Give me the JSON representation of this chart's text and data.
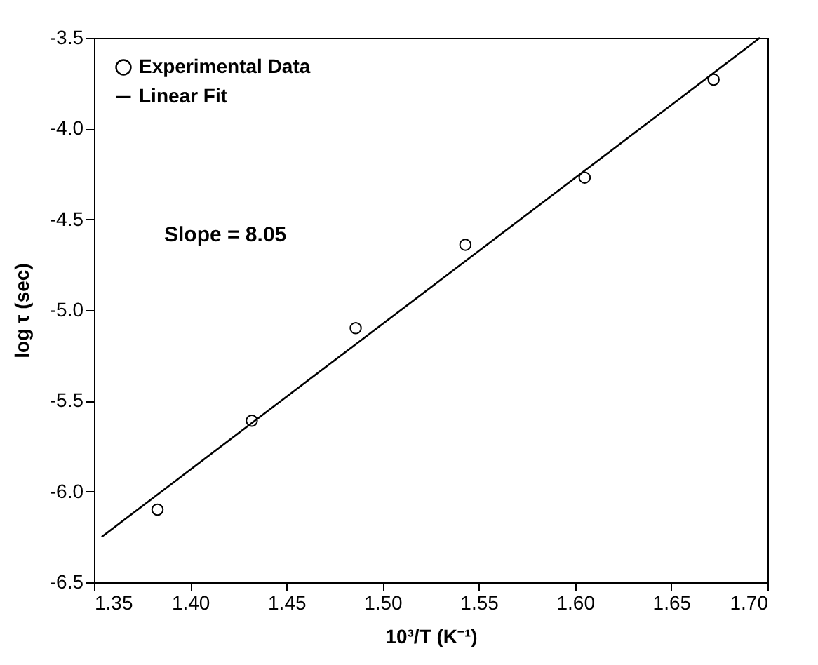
{
  "chart_data": {
    "type": "scatter",
    "xlabel": "10³/T (K⁻¹)",
    "ylabel": "log τ (sec)",
    "xlim": [
      1.35,
      1.7
    ],
    "ylim": [
      -6.5,
      -3.5
    ],
    "xticks": [
      {
        "value": 1.35,
        "label": "1.35"
      },
      {
        "value": 1.4,
        "label": "1.40"
      },
      {
        "value": 1.45,
        "label": "1.45"
      },
      {
        "value": 1.5,
        "label": "1.50"
      },
      {
        "value": 1.55,
        "label": "1.55"
      },
      {
        "value": 1.6,
        "label": "1.60"
      },
      {
        "value": 1.65,
        "label": "1.65"
      },
      {
        "value": 1.7,
        "label": "1.70"
      }
    ],
    "yticks": [
      {
        "value": -6.5,
        "label": "-6.5"
      },
      {
        "value": -6,
        "label": "-6.0"
      },
      {
        "value": -5.5,
        "label": "-5.5"
      },
      {
        "value": -5,
        "label": "-5.0"
      },
      {
        "value": -4.5,
        "label": "-4.5"
      },
      {
        "value": -4,
        "label": "-4.0"
      },
      {
        "value": -3.5,
        "label": "-3.5"
      }
    ],
    "legend": "top left",
    "annotations": [
      "Slope = 8.05"
    ],
    "series": [
      {
        "name": "Experimental Data",
        "marker": "circle",
        "color": "#000000",
        "x": [
          1.383,
          1.432,
          1.486,
          1.543,
          1.605,
          1.672
        ],
        "values": [
          -6.1,
          -5.61,
          -5.1,
          -4.64,
          -4.27,
          -3.73
        ]
      },
      {
        "name": "Linear Fit",
        "type": "line",
        "marker": "none",
        "color": "#000000",
        "x": [
          1.354,
          1.696
        ],
        "values": [
          -6.25,
          -3.5
        ]
      }
    ]
  }
}
